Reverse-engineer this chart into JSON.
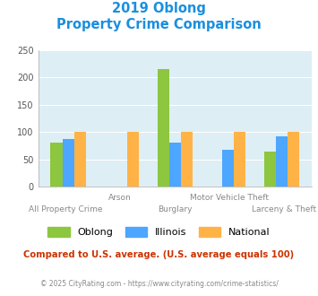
{
  "title_line1": "2019 Oblong",
  "title_line2": "Property Crime Comparison",
  "categories": [
    "All Property Crime",
    "Arson",
    "Burglary",
    "Motor Vehicle Theft",
    "Larceny & Theft"
  ],
  "series": {
    "Oblong": [
      80,
      0,
      215,
      0,
      64
    ],
    "Illinois": [
      87,
      0,
      80,
      68,
      92
    ],
    "National": [
      100,
      100,
      100,
      100,
      100
    ]
  },
  "colors": {
    "Oblong": "#8dc63f",
    "Illinois": "#4da6ff",
    "National": "#ffb347"
  },
  "ylim": [
    0,
    250
  ],
  "yticks": [
    0,
    50,
    100,
    150,
    200,
    250
  ],
  "background_color": "#ddeef5",
  "title_color": "#1a8fdf",
  "footer_text": "Compared to U.S. average. (U.S. average equals 100)",
  "footer_color": "#cc3300",
  "credit_text": "© 2025 CityRating.com - https://www.cityrating.com/crime-statistics/",
  "credit_color": "#888888",
  "bar_width": 0.22
}
